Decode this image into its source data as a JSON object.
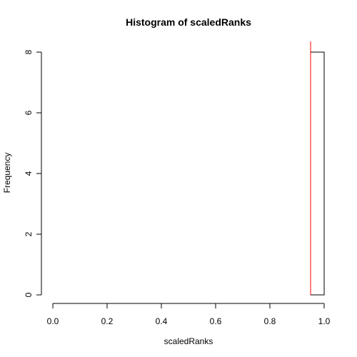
{
  "chart_data": {
    "type": "bar",
    "title": "Histogram of scaledRanks",
    "xlabel": "scaledRanks",
    "ylabel": "Frequency",
    "xlim": [
      0.0,
      1.0
    ],
    "ylim": [
      0,
      8
    ],
    "x_ticks": [
      "0.0",
      "0.2",
      "0.4",
      "0.6",
      "0.8",
      "1.0"
    ],
    "y_ticks": [
      "0",
      "2",
      "4",
      "6",
      "8"
    ],
    "bins": [
      {
        "start": 0.0,
        "end": 0.05,
        "count": 0
      },
      {
        "start": 0.05,
        "end": 0.1,
        "count": 0
      },
      {
        "start": 0.1,
        "end": 0.15,
        "count": 0
      },
      {
        "start": 0.15,
        "end": 0.2,
        "count": 0
      },
      {
        "start": 0.2,
        "end": 0.25,
        "count": 0
      },
      {
        "start": 0.25,
        "end": 0.3,
        "count": 0
      },
      {
        "start": 0.3,
        "end": 0.35,
        "count": 0
      },
      {
        "start": 0.35,
        "end": 0.4,
        "count": 0
      },
      {
        "start": 0.4,
        "end": 0.45,
        "count": 0
      },
      {
        "start": 0.45,
        "end": 0.5,
        "count": 0
      },
      {
        "start": 0.5,
        "end": 0.55,
        "count": 0
      },
      {
        "start": 0.55,
        "end": 0.6,
        "count": 0
      },
      {
        "start": 0.6,
        "end": 0.65,
        "count": 0
      },
      {
        "start": 0.65,
        "end": 0.7,
        "count": 0
      },
      {
        "start": 0.7,
        "end": 0.75,
        "count": 0
      },
      {
        "start": 0.75,
        "end": 0.8,
        "count": 0
      },
      {
        "start": 0.8,
        "end": 0.85,
        "count": 0
      },
      {
        "start": 0.85,
        "end": 0.9,
        "count": 0
      },
      {
        "start": 0.9,
        "end": 0.95,
        "count": 0
      },
      {
        "start": 0.95,
        "end": 1.0,
        "count": 8
      }
    ],
    "reference_line": {
      "x": 0.95,
      "color": "#ff0000"
    },
    "bar_color": "#ffffff",
    "bar_border_color": "#000000",
    "grid": false,
    "legend": "none"
  }
}
